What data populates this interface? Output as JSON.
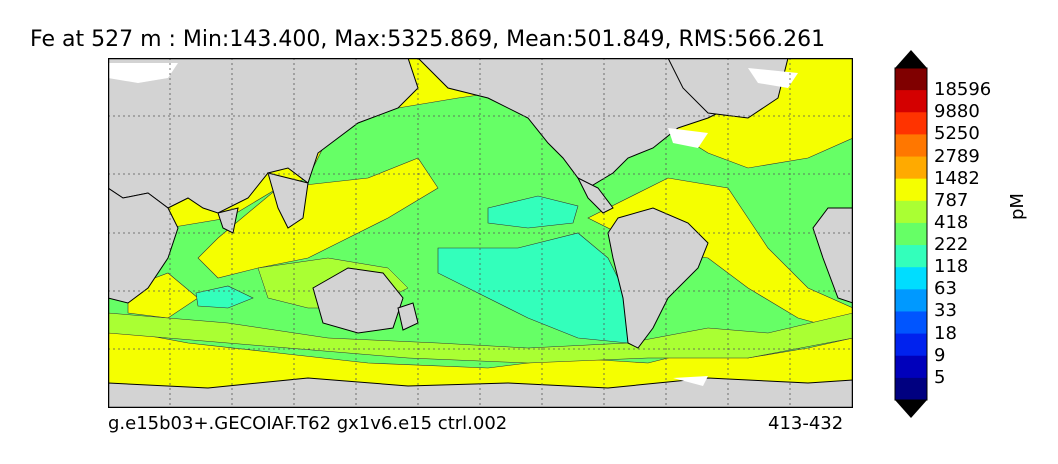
{
  "title": "Fe at 527 m : Min:143.400, Max:5325.869, Mean:501.849, RMS:566.261",
  "footer": {
    "case_name": "g.e15b03+.GECOIAF.T62 gx1v6.e15 ctrl.002",
    "years": "413-432"
  },
  "colorbar": {
    "unit": "pM",
    "labels": [
      "18596",
      "9880",
      "5250",
      "2789",
      "1482",
      "787",
      "418",
      "222",
      "118",
      "63",
      "33",
      "18",
      "9",
      "5"
    ],
    "colors": [
      "#800000",
      "#d40000",
      "#ff3300",
      "#ff7700",
      "#ffaa00",
      "#f5ff00",
      "#aaff33",
      "#66ff66",
      "#33ffbb",
      "#00ddff",
      "#0099ff",
      "#0055ff",
      "#0022ee",
      "#0000bb",
      "#000080"
    ]
  },
  "map_colors": {
    "land": "#d3d3d3",
    "ice_or_nodata": "#ffffff",
    "coast": "#000000",
    "contour": "#333333",
    "grid": "#555555"
  }
}
